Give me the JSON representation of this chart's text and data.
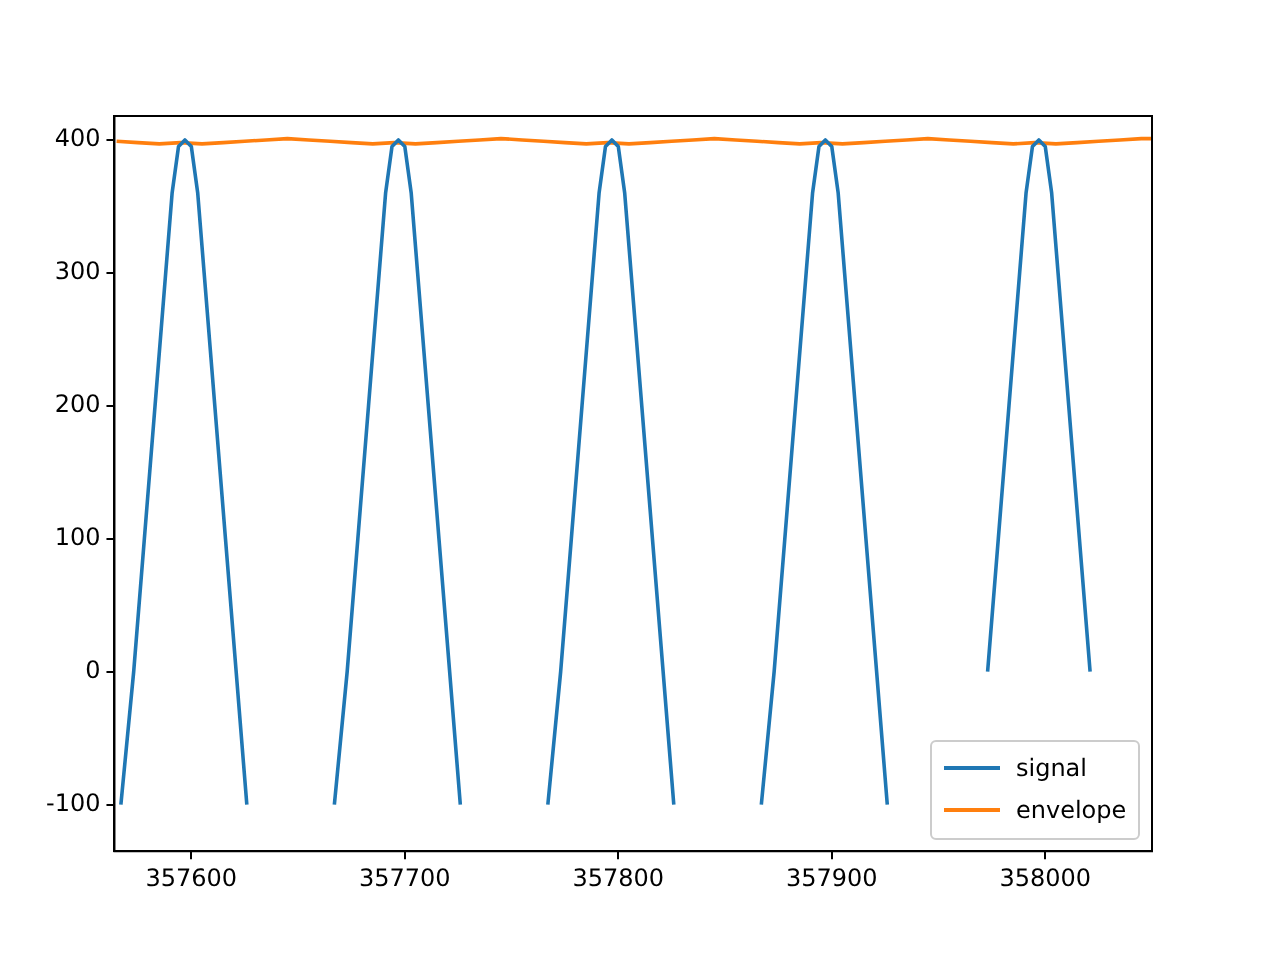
{
  "chart_data": {
    "type": "line",
    "xlim": [
      357564,
      358050
    ],
    "xticks": [
      357600,
      357700,
      357800,
      357900,
      358000
    ],
    "ylim": [
      -135,
      418
    ],
    "yticks": [
      -100,
      0,
      100,
      200,
      300,
      400
    ],
    "grid": false,
    "legend": "bottom right",
    "marker": "none",
    "line_style": "solid",
    "series": [
      {
        "name": "signal",
        "color": "#1f77b4",
        "x": [
          357567,
          357573,
          357578,
          357583,
          357588,
          357591,
          357594,
          357597,
          357600,
          357603,
          357606,
          357611,
          357616,
          357621,
          357626,
          357640,
          357667,
          357673,
          357678,
          357683,
          357688,
          357691,
          357694,
          357697,
          357700,
          357703,
          357706,
          357711,
          357716,
          357721,
          357726,
          357740,
          357767,
          357773,
          357778,
          357783,
          357788,
          357791,
          357794,
          357797,
          357800,
          357803,
          357806,
          357811,
          357816,
          357821,
          357826,
          357840,
          357867,
          357873,
          357878,
          357883,
          357888,
          357891,
          357894,
          357897,
          357900,
          357903,
          357906,
          357911,
          357916,
          357921,
          357926,
          357940,
          357973,
          357978,
          357983,
          357988,
          357991,
          357994,
          357997,
          358000,
          358003,
          358006,
          358011,
          358016,
          358021
        ],
        "values": [
          -100,
          0,
          100,
          200,
          300,
          360,
          395,
          400,
          395,
          360,
          300,
          200,
          100,
          0,
          -100,
          null,
          -100,
          0,
          100,
          200,
          300,
          360,
          395,
          400,
          395,
          360,
          300,
          200,
          100,
          0,
          -100,
          null,
          -100,
          0,
          100,
          200,
          300,
          360,
          395,
          400,
          395,
          360,
          300,
          200,
          100,
          0,
          -100,
          null,
          -100,
          0,
          100,
          200,
          300,
          360,
          395,
          400,
          395,
          360,
          300,
          200,
          100,
          0,
          -100,
          null,
          0,
          100,
          200,
          300,
          360,
          395,
          400,
          395,
          360,
          300,
          200,
          100,
          0
        ]
      },
      {
        "name": "envelope",
        "color": "#ff7f0e",
        "x": [
          357565,
          357575,
          357585,
          357595,
          357605,
          357615,
          357625,
          357635,
          357645,
          357655,
          357665,
          357675,
          357685,
          357695,
          357705,
          357715,
          357725,
          357735,
          357745,
          357755,
          357765,
          357775,
          357785,
          357795,
          357805,
          357815,
          357825,
          357835,
          357845,
          357855,
          357865,
          357875,
          357885,
          357895,
          357905,
          357915,
          357925,
          357935,
          357945,
          357955,
          357965,
          357975,
          357985,
          357995,
          358005,
          358015,
          358025,
          358035,
          358045,
          358050
        ],
        "values": [
          399,
          398,
          397,
          398,
          397,
          398,
          399,
          400,
          401,
          400,
          399,
          398,
          397,
          398,
          397,
          398,
          399,
          400,
          401,
          400,
          399,
          398,
          397,
          398,
          397,
          398,
          399,
          400,
          401,
          400,
          399,
          398,
          397,
          398,
          397,
          398,
          399,
          400,
          401,
          400,
          399,
          398,
          397,
          398,
          397,
          398,
          399,
          400,
          401,
          401
        ]
      }
    ]
  }
}
